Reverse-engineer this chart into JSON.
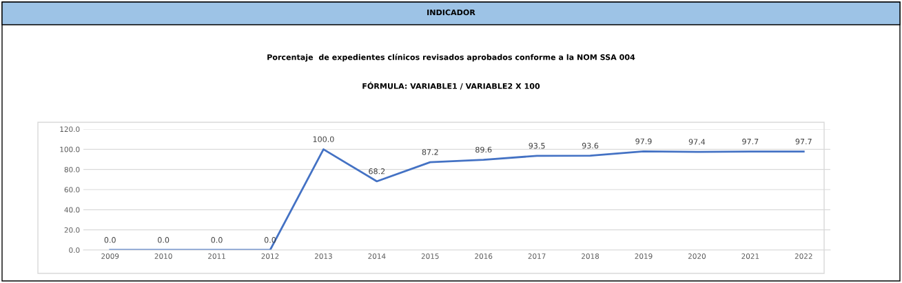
{
  "chart_data": {
    "type": "line",
    "title": "INDICADOR",
    "subtitle": "Porcentaje  de expedientes clínicos revisados aprobados conforme a la NOM SSA 004",
    "annotations": [
      "FÓRMULA: VARIABLE1 / VARIABLE2 X 100"
    ],
    "categories": [
      "2009",
      "2010",
      "2011",
      "2012",
      "2013",
      "2014",
      "2015",
      "2016",
      "2017",
      "2018",
      "2019",
      "2020",
      "2021",
      "2022"
    ],
    "series": [
      {
        "color": "#4472c4",
        "values": [
          0,
          0,
          0,
          0,
          100,
          68.2,
          87.2,
          89.6,
          93.5,
          93.6,
          97.9,
          97.4,
          97.7,
          97.7
        ],
        "value_labels": [
          "0.0",
          "0.0",
          "0.0",
          "0.0",
          "100.0",
          "68.2",
          "87.2",
          "89.6",
          "93.5",
          "93.6",
          "97.9",
          "97.4",
          "97.7",
          "97.7"
        ]
      }
    ],
    "ylim": [
      0,
      120
    ],
    "yticks": [
      {
        "value": 0,
        "label": "0.0"
      },
      {
        "value": 20,
        "label": "20.0"
      },
      {
        "value": 40,
        "label": "40.0"
      },
      {
        "value": 60,
        "label": "60.0"
      },
      {
        "value": 80,
        "label": "80.0"
      },
      {
        "value": 100,
        "label": "100.0"
      },
      {
        "value": 120,
        "label": "120.0"
      }
    ],
    "grid": "y",
    "marker": "none",
    "line_style": "solid",
    "legend": false
  }
}
